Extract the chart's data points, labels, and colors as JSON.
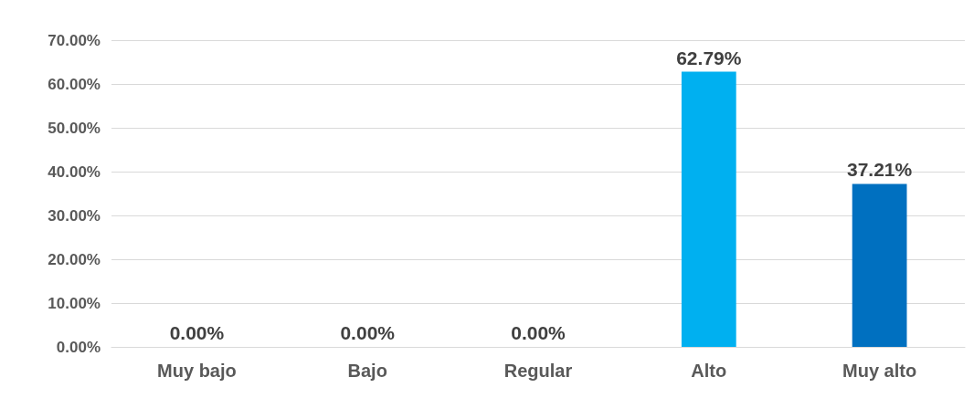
{
  "chart_data": {
    "type": "bar",
    "categories": [
      "Muy bajo",
      "Bajo",
      "Regular",
      "Alto",
      "Muy alto"
    ],
    "values": [
      0,
      0,
      0,
      62.79,
      37.21
    ],
    "colors": [
      "#00b0f0",
      "#00b0f0",
      "#00b0f0",
      "#00b0f0",
      "#0070c0"
    ],
    "value_labels": [
      "0.00%",
      "0.00%",
      "0.00%",
      "62.79%",
      "37.21%"
    ],
    "ylim": [
      0,
      70
    ],
    "yticks": [
      {
        "value": 0,
        "label": "0.00%"
      },
      {
        "value": 10,
        "label": "10.00%"
      },
      {
        "value": 20,
        "label": "20.00%"
      },
      {
        "value": 30,
        "label": "30.00%"
      },
      {
        "value": 40,
        "label": "40.00%"
      },
      {
        "value": 50,
        "label": "50.00%"
      },
      {
        "value": 60,
        "label": "60.00%"
      },
      {
        "value": 70,
        "label": "70.00%"
      }
    ],
    "grid": "y"
  }
}
